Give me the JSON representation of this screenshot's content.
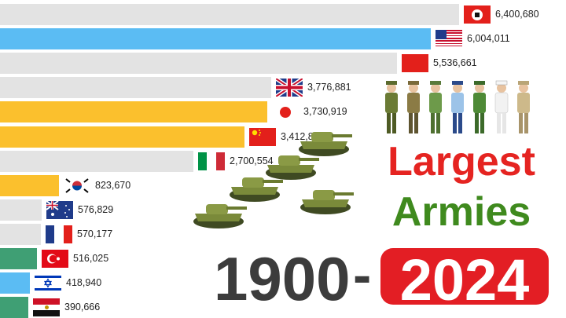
{
  "title": {
    "line1": "Largest",
    "line2": "Armies",
    "start_year": "1900",
    "separator": "-",
    "end_year": "2024"
  },
  "colors": {
    "title_red": "#e52421",
    "title_green": "#3f8a1e",
    "year_dark": "#3c3c3c",
    "year_box": "#e31e24"
  },
  "chart_data": {
    "type": "bar",
    "orientation": "horizontal",
    "categories": [
      "Soviet Union",
      "United States",
      "China",
      "United Kingdom",
      "Japan",
      "China",
      "Italy",
      "South Korea",
      "Australia",
      "France",
      "Turkey",
      "Israel",
      "Egypt"
    ],
    "values": [
      6400680,
      6004011,
      5536661,
      3776881,
      3730919,
      3412809,
      2700554,
      823670,
      576829,
      570177,
      516025,
      418940,
      390666
    ],
    "labels": [
      "6,400,680",
      "6,004,011",
      "5,536,661",
      "3,776,881",
      "3,730,919",
      "3,412,809",
      "2,700,554",
      "823,670",
      "576,829",
      "570,177",
      "516,025",
      "418,940",
      "390,666"
    ],
    "flags": [
      "soviet-emblem-flag",
      "usa-flag",
      "red-flag",
      "uk-flag",
      "japan-flag",
      "china-flag",
      "italy-flag",
      "south-korea-flag",
      "australia-flag",
      "france-flag",
      "turkey-flag",
      "israel-flag",
      "egypt-flag"
    ],
    "bar_colors": [
      "#e3e3e3",
      "#5bbcf3",
      "#e3e3e3",
      "#e3e3e3",
      "#fbc02d",
      "#fbc02d",
      "#e3e3e3",
      "#fbc02d",
      "#e3e3e3",
      "#e3e3e3",
      "#3f9f74",
      "#5bbcf3",
      "#3f9f74"
    ],
    "xlim": [
      0,
      6400680
    ],
    "grid": false,
    "legend": "none"
  }
}
